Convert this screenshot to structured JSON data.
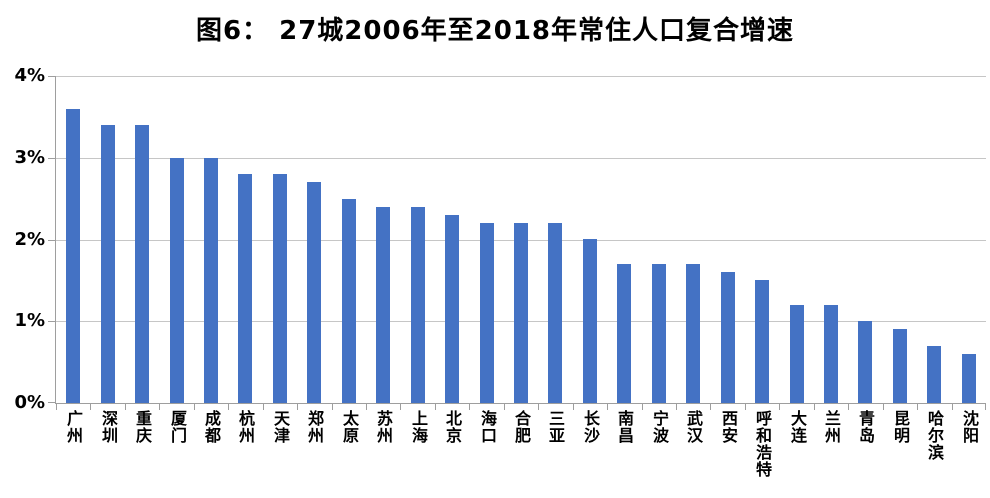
{
  "chart_data": {
    "type": "bar",
    "title": "图6： 27城2006年至2018年常住人口复合增速",
    "categories": [
      "广州",
      "深圳",
      "重庆",
      "厦门",
      "成都",
      "杭州",
      "天津",
      "郑州",
      "太原",
      "苏州",
      "上海",
      "北京",
      "海口",
      "合肥",
      "三亚",
      "长沙",
      "南昌",
      "宁波",
      "武汉",
      "西安",
      "呼和浩特",
      "大连",
      "兰州",
      "青岛",
      "昆明",
      "哈尔滨",
      "沈阳"
    ],
    "values": [
      3.6,
      3.4,
      3.4,
      3.0,
      3.0,
      2.8,
      2.8,
      2.7,
      2.5,
      2.4,
      2.4,
      2.3,
      2.2,
      2.2,
      2.2,
      2.0,
      1.7,
      1.7,
      1.7,
      1.6,
      1.5,
      1.2,
      1.2,
      1.0,
      0.9,
      0.7,
      0.6
    ],
    "unit": "%",
    "xlabel": "",
    "ylabel": "",
    "ylim": [
      0,
      4
    ],
    "ytick_step": 1,
    "ytick_labels": [
      "0%",
      "1%",
      "2%",
      "3%",
      "4%"
    ],
    "grid": true,
    "legend": false,
    "colors": {
      "bar": "#4472C4",
      "gridline": "#C6C6C6",
      "axis": "#9E9E9E",
      "text": "#000000",
      "background": "#FFFFFF"
    }
  }
}
